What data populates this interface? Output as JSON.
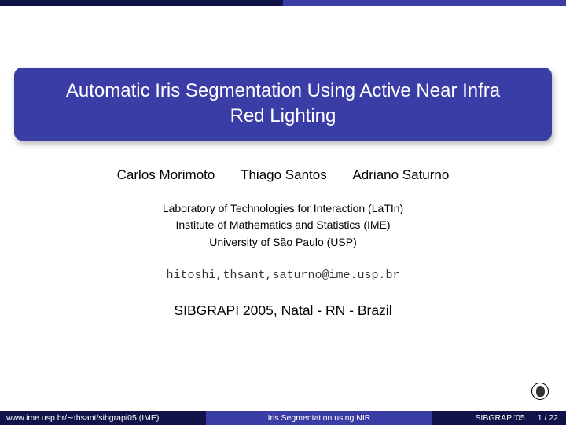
{
  "title": {
    "line1": "Automatic Iris Segmentation Using Active Near Infra",
    "line2": "Red Lighting"
  },
  "authors": {
    "a1": "Carlos Morimoto",
    "a2": "Thiago Santos",
    "a3": "Adriano Saturno"
  },
  "affiliation": {
    "line1": "Laboratory of Technologies for Interaction (LaTIn)",
    "line2": "Institute of Mathematics and Statistics (IME)",
    "line3": "University of São Paulo (USP)"
  },
  "emails": "hitoshi,thsant,saturno@ime.usp.br",
  "venue": "SIBGRAPI 2005, Natal - RN - Brazil",
  "footer": {
    "left_prefix": "www.ime.usp.br/",
    "left_tilde": "∼",
    "left_rest": "thsant/sibgrapi05  (IME)",
    "center": "Iris Segmentation using NIR",
    "right_conf": "SIBGRAPI'05",
    "right_page": "1 / 22"
  },
  "colors": {
    "dark": "#12124a",
    "accent": "#3b3da6",
    "white": "#ffffff"
  }
}
